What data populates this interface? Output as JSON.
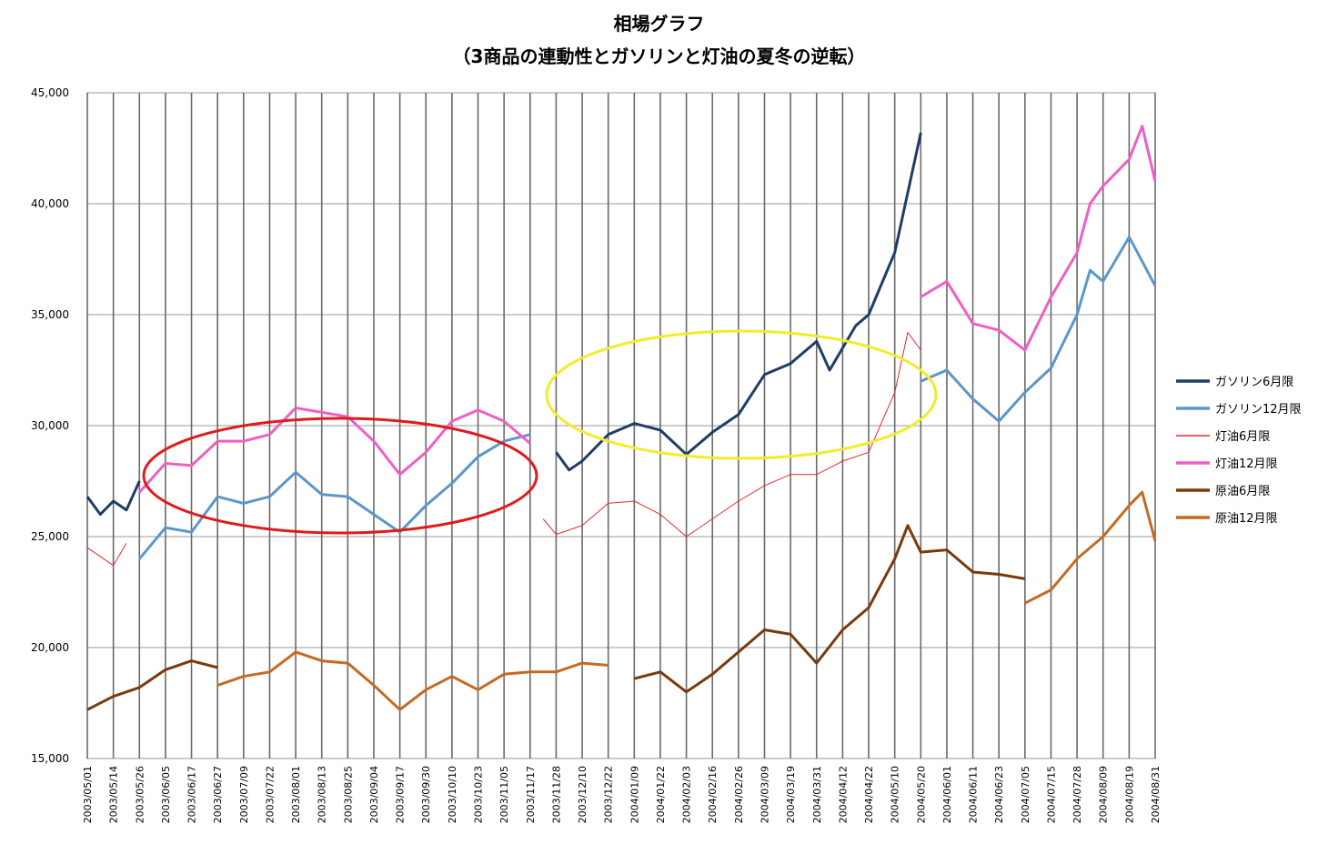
{
  "chart_data": {
    "type": "line",
    "title": "相場グラフ",
    "subtitle": "（3商品の連動性とガソリンと灯油の夏冬の逆転）",
    "ylim": [
      15000,
      45000
    ],
    "y_ticks": [
      "15,000",
      "20,000",
      "25,000",
      "30,000",
      "35,000",
      "40,000",
      "45,000"
    ],
    "x_ticks": [
      "2003/05/01",
      "2003/05/14",
      "2003/05/26",
      "2003/06/05",
      "2003/06/17",
      "2003/06/27",
      "2003/07/09",
      "2003/07/22",
      "2003/08/01",
      "2003/08/13",
      "2003/08/25",
      "2003/09/04",
      "2003/09/17",
      "2003/09/30",
      "2003/10/10",
      "2003/10/23",
      "2003/11/05",
      "2003/11/17",
      "2003/11/28",
      "2003/12/10",
      "2003/12/22",
      "2004/01/09",
      "2004/01/22",
      "2004/02/03",
      "2004/02/16",
      "2004/02/26",
      "2004/03/09",
      "2004/03/19",
      "2004/03/31",
      "2004/04/12",
      "2004/04/22",
      "2004/05/10",
      "2004/05/20",
      "2004/06/01",
      "2004/06/11",
      "2004/06/23",
      "2004/07/05",
      "2004/07/15",
      "2004/07/28",
      "2004/08/09",
      "2004/08/19",
      "2004/08/31"
    ],
    "grid": true,
    "legend_position": "right",
    "series": [
      {
        "name": "ガソリン6月限",
        "color": "#1f3d66",
        "width": 3,
        "points": [
          [
            0,
            26800
          ],
          [
            0.5,
            26000
          ],
          [
            1,
            26600
          ],
          [
            1.5,
            26200
          ],
          [
            2,
            27500
          ],
          [
            18,
            28800
          ],
          [
            18.5,
            28000
          ],
          [
            19,
            28400
          ],
          [
            20,
            29600
          ],
          [
            21,
            30100
          ],
          [
            22,
            29800
          ],
          [
            23,
            28700
          ],
          [
            24,
            29700
          ],
          [
            25,
            30500
          ],
          [
            26,
            32300
          ],
          [
            27,
            32800
          ],
          [
            28,
            33800
          ],
          [
            28.5,
            32500
          ],
          [
            29,
            33500
          ],
          [
            29.5,
            34500
          ],
          [
            30,
            35000
          ],
          [
            31,
            37800
          ],
          [
            31.5,
            40500
          ],
          [
            32,
            43200
          ]
        ]
      },
      {
        "name": "ガソリン12月限",
        "color": "#5b97c9",
        "width": 3,
        "points": [
          [
            2,
            24000
          ],
          [
            3,
            25400
          ],
          [
            4,
            25200
          ],
          [
            5,
            26800
          ],
          [
            6,
            26500
          ],
          [
            7,
            26800
          ],
          [
            8,
            27900
          ],
          [
            9,
            26900
          ],
          [
            10,
            26800
          ],
          [
            11,
            26000
          ],
          [
            12,
            25200
          ],
          [
            13,
            26400
          ],
          [
            14,
            27400
          ],
          [
            15,
            28600
          ],
          [
            16,
            29300
          ],
          [
            17,
            29600
          ],
          [
            32,
            32000
          ],
          [
            33,
            32500
          ],
          [
            34,
            31200
          ],
          [
            35,
            30200
          ],
          [
            36,
            31500
          ],
          [
            37,
            32600
          ],
          [
            38,
            35000
          ],
          [
            38.5,
            37000
          ],
          [
            39,
            36500
          ],
          [
            40,
            38500
          ],
          [
            41,
            36300
          ]
        ]
      },
      {
        "name": "灯油6月限",
        "color": "#e42a2a",
        "width": 1,
        "points": [
          [
            0,
            24500
          ],
          [
            1,
            23700
          ],
          [
            1.5,
            24700
          ],
          [
            17.5,
            25800
          ],
          [
            18,
            25100
          ],
          [
            19,
            25500
          ],
          [
            20,
            26500
          ],
          [
            21,
            26600
          ],
          [
            22,
            26000
          ],
          [
            23,
            25000
          ],
          [
            24,
            25800
          ],
          [
            25,
            26600
          ],
          [
            26,
            27300
          ],
          [
            27,
            27800
          ],
          [
            28,
            27800
          ],
          [
            29,
            28400
          ],
          [
            30,
            28800
          ],
          [
            31,
            31500
          ],
          [
            31.5,
            34200
          ],
          [
            32,
            33400
          ]
        ]
      },
      {
        "name": "灯油12月限",
        "color": "#ef5fc4",
        "width": 3,
        "points": [
          [
            2,
            27000
          ],
          [
            3,
            28300
          ],
          [
            4,
            28200
          ],
          [
            5,
            29300
          ],
          [
            6,
            29300
          ],
          [
            7,
            29600
          ],
          [
            8,
            30800
          ],
          [
            9,
            30600
          ],
          [
            10,
            30400
          ],
          [
            11,
            29300
          ],
          [
            12,
            27800
          ],
          [
            13,
            28800
          ],
          [
            14,
            30200
          ],
          [
            15,
            30700
          ],
          [
            16,
            30200
          ],
          [
            17,
            29200
          ],
          [
            32,
            35800
          ],
          [
            33,
            36500
          ],
          [
            34,
            34600
          ],
          [
            35,
            34300
          ],
          [
            36,
            33400
          ],
          [
            37,
            35800
          ],
          [
            38,
            37800
          ],
          [
            38.5,
            40000
          ],
          [
            39,
            40800
          ],
          [
            40,
            42000
          ],
          [
            40.5,
            43500
          ],
          [
            41,
            41000
          ]
        ]
      },
      {
        "name": "原油6月限",
        "color": "#7a3a0d",
        "width": 3,
        "points": [
          [
            0,
            17200
          ],
          [
            1,
            17800
          ],
          [
            2,
            18200
          ],
          [
            3,
            19000
          ],
          [
            4,
            19400
          ],
          [
            5,
            19100
          ],
          [
            21,
            18600
          ],
          [
            22,
            18900
          ],
          [
            23,
            18000
          ],
          [
            24,
            18800
          ],
          [
            25,
            19800
          ],
          [
            26,
            20800
          ],
          [
            27,
            20600
          ],
          [
            28,
            19300
          ],
          [
            29,
            20800
          ],
          [
            30,
            21800
          ],
          [
            31,
            24000
          ],
          [
            31.5,
            25500
          ],
          [
            32,
            24300
          ],
          [
            33,
            24400
          ],
          [
            34,
            23400
          ],
          [
            35,
            23300
          ],
          [
            36,
            23100
          ]
        ]
      },
      {
        "name": "原油12月限",
        "color": "#c46a22",
        "width": 3,
        "points": [
          [
            5,
            18300
          ],
          [
            6,
            18700
          ],
          [
            7,
            18900
          ],
          [
            8,
            19800
          ],
          [
            9,
            19400
          ],
          [
            10,
            19300
          ],
          [
            11,
            18300
          ],
          [
            12,
            17200
          ],
          [
            13,
            18100
          ],
          [
            14,
            18700
          ],
          [
            15,
            18100
          ],
          [
            16,
            18800
          ],
          [
            17,
            18900
          ],
          [
            18,
            18900
          ],
          [
            19,
            19300
          ],
          [
            20,
            19200
          ],
          [
            36,
            22000
          ],
          [
            37,
            22600
          ],
          [
            38,
            24000
          ],
          [
            39,
            25000
          ],
          [
            40,
            26400
          ],
          [
            40.5,
            27000
          ],
          [
            41,
            24800
          ]
        ]
      }
    ]
  }
}
